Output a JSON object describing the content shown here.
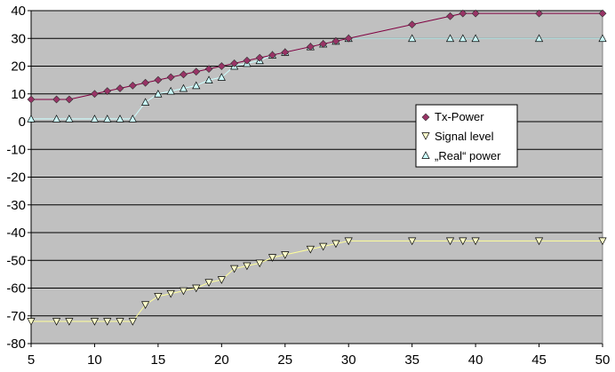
{
  "chart_data": {
    "type": "line",
    "title": "",
    "xlabel": "",
    "ylabel": "",
    "xlim": [
      5,
      50
    ],
    "ylim": [
      -80,
      40
    ],
    "x_ticks": [
      5,
      10,
      15,
      20,
      25,
      30,
      35,
      40,
      45,
      50
    ],
    "y_ticks": [
      -80,
      -70,
      -60,
      -50,
      -40,
      -30,
      -20,
      -10,
      0,
      10,
      20,
      30,
      40
    ],
    "grid": "horizontal",
    "plot_background": "#c0c0c0",
    "legend_position": "center-right",
    "series": [
      {
        "name": "Tx-Power",
        "marker": "diamond",
        "line_color": "#800040",
        "marker_color": "#993366",
        "x": [
          5,
          7,
          8,
          10,
          11,
          12,
          13,
          14,
          15,
          16,
          17,
          18,
          19,
          20,
          21,
          22,
          23,
          24,
          25,
          27,
          28,
          29,
          30,
          35,
          38,
          39,
          40,
          45,
          50
        ],
        "y": [
          8,
          8,
          8,
          10,
          11,
          12,
          13,
          14,
          15,
          16,
          17,
          18,
          19,
          20,
          21,
          22,
          23,
          24,
          25,
          27,
          28,
          29,
          30,
          35,
          38,
          39,
          39,
          39,
          39
        ]
      },
      {
        "name": "Signal level",
        "marker": "triangle-down",
        "line_color": "#ffff99",
        "marker_color": "#ffffcc",
        "x": [
          5,
          7,
          8,
          10,
          11,
          12,
          13,
          14,
          15,
          16,
          17,
          18,
          19,
          20,
          21,
          22,
          23,
          24,
          25,
          27,
          28,
          29,
          30,
          35,
          38,
          39,
          40,
          45,
          50
        ],
        "y": [
          -72,
          -72,
          -72,
          -72,
          -72,
          -72,
          -72,
          -66,
          -63,
          -62,
          -61,
          -60,
          -58,
          -57,
          -53,
          -52,
          -51,
          -49,
          -48,
          -46,
          -45,
          -44,
          -43,
          -43,
          -43,
          -43,
          -43,
          -43,
          -43
        ]
      },
      {
        "name": "„Real“ power",
        "marker": "triangle-up",
        "line_color": "#ccffff",
        "marker_color": "#ccffff",
        "x": [
          5,
          7,
          8,
          10,
          11,
          12,
          13,
          14,
          15,
          16,
          17,
          18,
          19,
          20,
          21,
          22,
          23,
          24,
          25,
          27,
          28,
          29,
          30,
          35,
          38,
          39,
          40,
          45,
          50
        ],
        "y": [
          1,
          1,
          1,
          1,
          1,
          1,
          1,
          7,
          10,
          11,
          12,
          13,
          15,
          16,
          20,
          21,
          22,
          24,
          25,
          27,
          28,
          29,
          30,
          30,
          30,
          30,
          30,
          30,
          30
        ]
      }
    ]
  }
}
